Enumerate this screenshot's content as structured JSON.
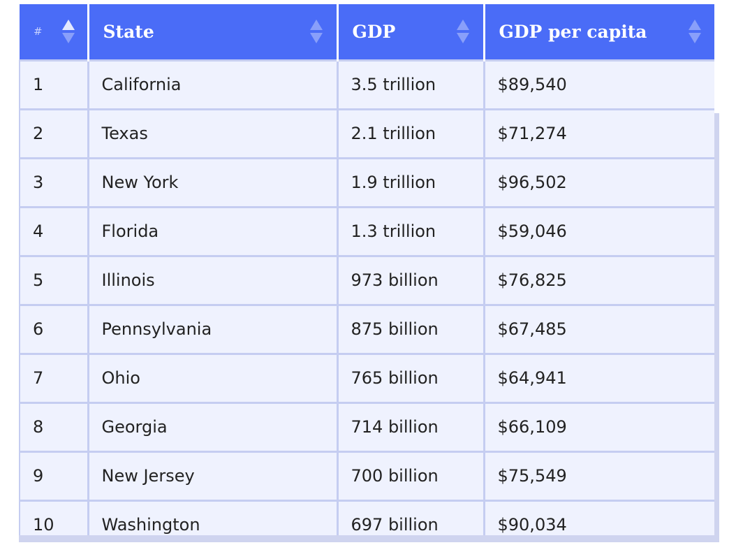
{
  "table": {
    "headers": {
      "rank": "#",
      "state": "State",
      "gdp": "GDP",
      "gdp_per_capita": "GDP per capita"
    },
    "sort": {
      "column": "rank",
      "direction": "ascending"
    },
    "rows": [
      {
        "rank": "1",
        "state": "California",
        "gdp": "3.5 trillion",
        "gdp_per_capita": "$89,540"
      },
      {
        "rank": "2",
        "state": "Texas",
        "gdp": "2.1 trillion",
        "gdp_per_capita": "$71,274"
      },
      {
        "rank": "3",
        "state": "New York",
        "gdp": "1.9 trillion",
        "gdp_per_capita": "$96,502"
      },
      {
        "rank": "4",
        "state": "Florida",
        "gdp": "1.3 trillion",
        "gdp_per_capita": "$59,046"
      },
      {
        "rank": "5",
        "state": "Illinois",
        "gdp": "973 billion",
        "gdp_per_capita": "$76,825"
      },
      {
        "rank": "6",
        "state": "Pennsylvania",
        "gdp": "875 billion",
        "gdp_per_capita": "$67,485"
      },
      {
        "rank": "7",
        "state": "Ohio",
        "gdp": "765 billion",
        "gdp_per_capita": "$64,941"
      },
      {
        "rank": "8",
        "state": "Georgia",
        "gdp": "714 billion",
        "gdp_per_capita": "$66,109"
      },
      {
        "rank": "9",
        "state": "New Jersey",
        "gdp": "700 billion",
        "gdp_per_capita": "$75,549"
      },
      {
        "rank": "10",
        "state": "Washington",
        "gdp": "697 billion",
        "gdp_per_capita": "$90,034"
      }
    ]
  },
  "icons": {
    "sort": "sort-arrows-icon"
  },
  "colors": {
    "header_bg": "#4a6cf7",
    "row_bg": "#eff2fe",
    "border": "#c5cdf1"
  }
}
